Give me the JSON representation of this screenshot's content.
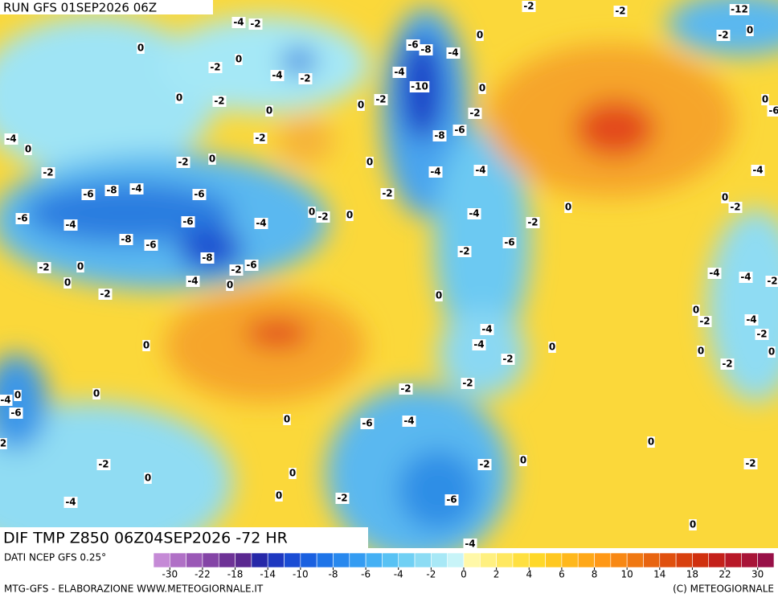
{
  "header": {
    "run": "RUN GFS 01SEP2026 06Z",
    "title": "DIF TMP Z850 06Z04SEP2026 -72 HR"
  },
  "footer": {
    "source": "DATI NCEP GFS 0.25°",
    "credit": "MTG-GFS - ELABORAZIONE WWW.METEOGIORNALE.IT",
    "copyright": "(C) METEOGIORNALE"
  },
  "colorbar": {
    "ticks": [
      -30,
      -22,
      -18,
      -14,
      -10,
      -8,
      -6,
      -4,
      -2,
      0,
      2,
      4,
      6,
      8,
      10,
      14,
      18,
      22,
      30
    ],
    "colors": [
      "#c58ad6",
      "#b070c6",
      "#9a58b6",
      "#8444a6",
      "#6e3296",
      "#5a2890",
      "#2628a8",
      "#1e38c0",
      "#1a4cd4",
      "#1a60e0",
      "#1e74e8",
      "#2888ee",
      "#349cf2",
      "#44b0f4",
      "#58c2f4",
      "#70d0f4",
      "#8cdcf4",
      "#a8e8f6",
      "#c8f4f8",
      "#fff8a8",
      "#fff080",
      "#ffe860",
      "#ffe040",
      "#ffd828",
      "#ffc820",
      "#ffb81c",
      "#ffa818",
      "#ff9816",
      "#f88814",
      "#f07812",
      "#e86410",
      "#e0500e",
      "#d8400e",
      "#d0300e",
      "#c4201a",
      "#b81828",
      "#a81438",
      "#981048"
    ]
  },
  "map_labels": [
    -2,
    -2,
    -12,
    -4,
    -2,
    -2,
    0,
    0,
    -6,
    -8,
    -4,
    0,
    -2,
    0,
    -4,
    -2,
    -4,
    -10,
    0,
    0,
    -2,
    0,
    0,
    -2,
    -2,
    -6,
    0,
    -2,
    -8,
    -6,
    -4,
    0,
    -2,
    0,
    0,
    -4,
    -4,
    -4,
    -2,
    -6,
    -8,
    -4,
    -6,
    -2,
    0,
    -2,
    -6,
    -4,
    -6,
    -4,
    0,
    -2,
    0,
    -4,
    -2,
    0,
    -8,
    -6,
    -6,
    -2,
    -8,
    -2,
    -6,
    -2,
    0,
    0,
    -4,
    0,
    -4,
    -4,
    -2,
    -2,
    0,
    0,
    -2,
    -4,
    -4,
    -2,
    0,
    -4,
    0,
    0,
    -2,
    -2,
    0,
    0,
    -4,
    -6,
    2,
    0,
    -2,
    -2,
    -6,
    -4,
    0,
    0,
    -2,
    -2,
    0,
    -2,
    0,
    0,
    0,
    -2,
    -6,
    -4,
    0,
    -4
  ]
}
